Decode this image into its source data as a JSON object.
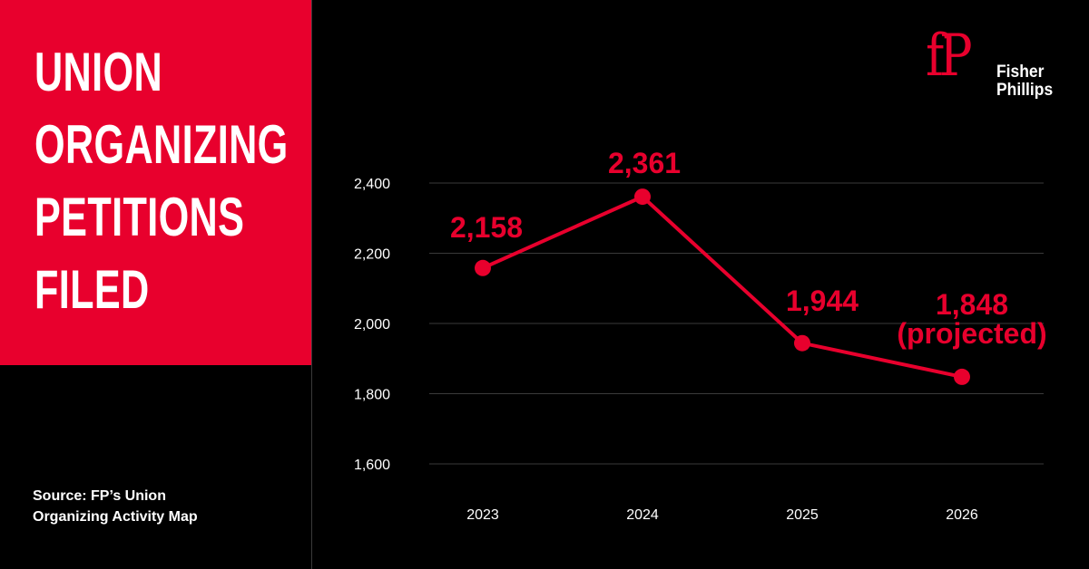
{
  "title": {
    "lines": [
      "UNION",
      "ORGANIZING",
      "PETITIONS",
      "FILED"
    ]
  },
  "source": {
    "lines": [
      "Source: FP’s Union",
      "Organizing Activity Map"
    ]
  },
  "logo": {
    "mark": "fP",
    "name_lines": [
      "Fisher",
      "Phillips"
    ]
  },
  "colors": {
    "accent": "#E8002D",
    "background": "#000000",
    "text": "#FFFFFF",
    "gridline": "#3A3A3A"
  },
  "chart_data": {
    "type": "line",
    "categories": [
      "2023",
      "2024",
      "2025",
      "2026"
    ],
    "values": [
      2158,
      2361,
      1944,
      1848
    ],
    "data_labels": [
      [
        "2,158"
      ],
      [
        "2,361"
      ],
      [
        "1,944"
      ],
      [
        "1,848",
        "(projected)"
      ]
    ],
    "yticks": [
      1600,
      1800,
      2000,
      2200,
      2400
    ],
    "ytick_labels": [
      "1,600",
      "1,800",
      "2,000",
      "2,200",
      "2,400"
    ],
    "ylim": [
      1600,
      2400
    ],
    "grid": true,
    "legend": "none"
  }
}
